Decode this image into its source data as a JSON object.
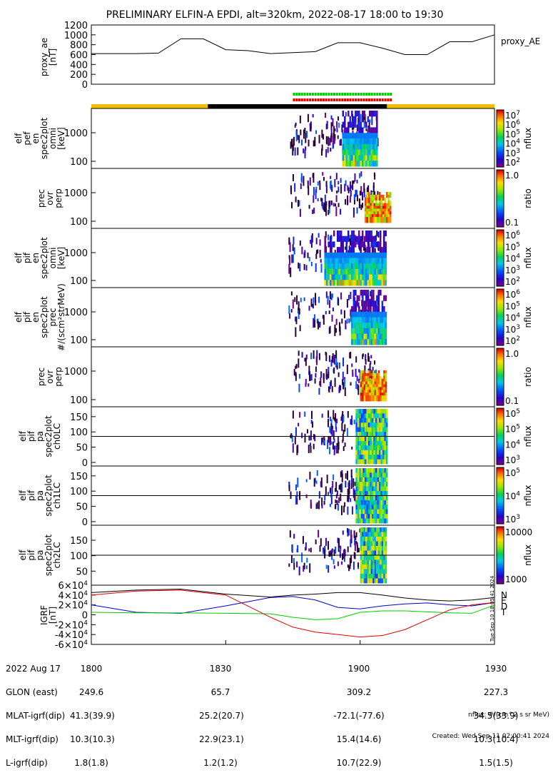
{
  "title": "PRELIMINARY ELFIN-A EPDI, alt=320km, 2022-08-17 18:00 to 19:30",
  "chart_data": [
    {
      "panel": "proxy_ae",
      "type": "line",
      "ylabel": "proxy_ae\n[nT]",
      "legend": "proxy_AE",
      "yticks": [
        "1200",
        "1000",
        "800",
        "600",
        "400",
        "200",
        "0"
      ],
      "ylim": [
        0,
        1200
      ],
      "x_minutes": [
        0,
        10,
        15,
        20,
        25,
        30,
        35,
        40,
        45,
        50,
        55,
        60,
        65,
        70,
        75,
        80,
        85,
        90
      ],
      "values": [
        620,
        620,
        630,
        920,
        920,
        700,
        680,
        620,
        640,
        660,
        840,
        840,
        730,
        600,
        600,
        860,
        860,
        1000
      ]
    },
    {
      "panel": "sci_zones",
      "rows": [
        {
          "color": "#00cc00",
          "start": 45,
          "end": 67
        },
        {
          "color": "#ee0000",
          "start": 45,
          "end": 67
        }
      ],
      "bar": [
        {
          "color": "#f0c000",
          "start": 0,
          "end": 26
        },
        {
          "color": "#000000",
          "start": 26,
          "end": 66
        },
        {
          "color": "#f0c000",
          "start": 66,
          "end": 90
        }
      ]
    },
    {
      "panel": "elf_pef_en_spec2plot_omni",
      "type": "heatmap",
      "ylabel": "elf\npef\nen\nspec2plot\nomni\n[keV]",
      "yticks": [
        "1000",
        "100"
      ],
      "zlabel": "nflux",
      "zticks": [
        "10^7",
        "10^6",
        "10^5",
        "10^4",
        "10^3",
        "10^2"
      ]
    },
    {
      "panel": "prec_ovr_perp_e",
      "type": "heatmap",
      "ylabel": "prec\novr\nperp",
      "yticks": [
        "1000",
        "100"
      ],
      "zlabel": "ratio",
      "zticks": [
        "1.0",
        "0.1"
      ]
    },
    {
      "panel": "elf_pif_en_spec2plot_omni",
      "type": "heatmap",
      "ylabel": "elf\npif\nen\nspec2plot\nomni\n[keV]",
      "yticks": [
        "1000",
        "100"
      ],
      "zlabel": "nflux",
      "zticks": [
        "10^6",
        "10^5",
        "10^4",
        "10^3",
        "10^2"
      ]
    },
    {
      "panel": "elf_pif_en_spec2plot_prec",
      "type": "heatmap",
      "ylabel": "elf\npif\nen\nspec2plot\nprec\n#/(scm²strMeV)",
      "yticks": [
        "1000",
        "100"
      ],
      "zlabel": "nflux",
      "zticks": [
        "10^6",
        "10^5",
        "10^4",
        "10^3",
        "10^2"
      ]
    },
    {
      "panel": "prec_ovr_perp_i",
      "type": "heatmap",
      "ylabel": "prec\novr\nperp",
      "yticks": [
        "1000",
        "100"
      ],
      "zlabel": "ratio",
      "zticks": [
        "1.0",
        "0.1"
      ]
    },
    {
      "panel": "elf_pif_pa_spec2plot_ch0LC",
      "type": "heatmap",
      "ylabel": "elf\npif\npa\nspec2plot\nch0LC",
      "yticks": [
        "150",
        "100",
        "50",
        "0"
      ],
      "zlabel": "nflux",
      "zticks": [
        "10^5",
        "10^5",
        "10^4",
        "10^3"
      ]
    },
    {
      "panel": "elf_pif_pa_spec2plot_ch1LC",
      "type": "heatmap",
      "ylabel": "elf\npif\npa\nspec2plot\nch1LC",
      "yticks": [
        "150",
        "100",
        "50",
        "0"
      ],
      "zlabel": "nflux",
      "zticks": [
        "10^5",
        "10^4",
        "10^3"
      ]
    },
    {
      "panel": "elf_pif_pa_spec2plot_ch2LC",
      "type": "heatmap",
      "ylabel": "elf\npif\npa\nspec2plot\nch2LC",
      "yticks": [
        "150",
        "100",
        "50"
      ],
      "zlabel": "nflux",
      "zticks": [
        "10000",
        "1000"
      ]
    },
    {
      "panel": "igrf",
      "type": "line",
      "ylabel": "IGRF\n[nT]",
      "yticks": [
        "6×10^4",
        "4×10^4",
        "2×10^4",
        "0",
        "-2×10^4",
        "-4×10^4",
        "-6×10^4"
      ],
      "ylim": [
        -60000,
        60000
      ],
      "x_minutes": [
        0,
        10,
        20,
        30,
        40,
        45,
        50,
        55,
        60,
        65,
        70,
        75,
        80,
        85,
        90
      ],
      "series": [
        {
          "name": "N",
          "color": "#0000cc",
          "values": [
            20000,
            5000,
            3000,
            18000,
            35000,
            37000,
            30000,
            15000,
            12000,
            18000,
            22000,
            24000,
            20000,
            18000,
            25000
          ]
        },
        {
          "name": "E",
          "color": "#00cc00",
          "values": [
            5000,
            4000,
            4000,
            3000,
            2000,
            -5000,
            -10000,
            -8000,
            5000,
            8000,
            8000,
            6000,
            4000,
            3000,
            20000
          ]
        },
        {
          "name": "D",
          "color": "#dd0000",
          "values": [
            40000,
            48000,
            50000,
            40000,
            -5000,
            -25000,
            -35000,
            -40000,
            -45000,
            -42000,
            -30000,
            -10000,
            10000,
            20000,
            25000
          ]
        },
        {
          "name": "T",
          "color": "#000000",
          "values": [
            45000,
            50000,
            52000,
            42000,
            36000,
            40000,
            42000,
            45000,
            45000,
            40000,
            34000,
            30000,
            28000,
            30000,
            35000
          ]
        }
      ],
      "side_label": "Tue Sep 10 18:05:41 2024"
    }
  ],
  "footer": {
    "row_labels": [
      "2022 Aug 17",
      "GLON (east)",
      "MLAT-igrf(dip)",
      "MLT-igrf(dip)",
      "L-igrf(dip)"
    ],
    "columns": [
      {
        "time": "1800",
        "vals": [
          "249.6",
          "41.3(39.9)",
          "10.3(10.3)",
          "1.8(1.8)"
        ]
      },
      {
        "time": "1830",
        "vals": [
          "65.7",
          "25.2(20.7)",
          "22.9(23.1)",
          "1.2(1.2)"
        ]
      },
      {
        "time": "1900",
        "vals": [
          "309.2",
          "-72.1(-77.6)",
          "15.4(14.6)",
          "10.7(22.9)"
        ]
      },
      {
        "time": "1930",
        "vals": [
          "227.3",
          "34.5(33.9)",
          "10.3(10.4)",
          "1.5(1.5)"
        ]
      }
    ],
    "note1": "nflux: #/(cm^2 s sr MeV)",
    "note2": "Created: Wed Sep 11 02:00:41 2024"
  }
}
